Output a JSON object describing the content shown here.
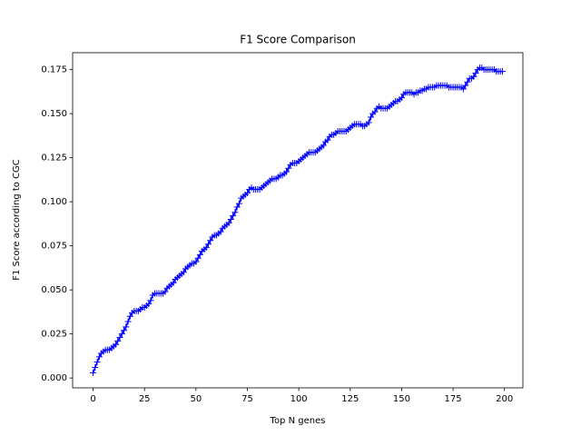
{
  "chart_data": {
    "type": "line",
    "title": "F1 Score Comparison",
    "xlabel": "Top N genes",
    "ylabel": "F1 Score according to CGC",
    "x": [
      0,
      1,
      2,
      3,
      4,
      5,
      6,
      7,
      8,
      9,
      10,
      11,
      12,
      13,
      14,
      15,
      16,
      17,
      18,
      19,
      20,
      21,
      22,
      23,
      24,
      25,
      26,
      27,
      28,
      29,
      30,
      31,
      32,
      33,
      34,
      35,
      36,
      37,
      38,
      39,
      40,
      41,
      42,
      43,
      44,
      45,
      46,
      47,
      48,
      49,
      50,
      51,
      52,
      53,
      54,
      55,
      56,
      57,
      58,
      59,
      60,
      61,
      62,
      63,
      64,
      65,
      66,
      67,
      68,
      69,
      70,
      71,
      72,
      73,
      74,
      75,
      76,
      77,
      78,
      79,
      80,
      81,
      82,
      83,
      84,
      85,
      86,
      87,
      88,
      89,
      90,
      91,
      92,
      93,
      94,
      95,
      96,
      97,
      98,
      99,
      100,
      101,
      102,
      103,
      104,
      105,
      106,
      107,
      108,
      109,
      110,
      111,
      112,
      113,
      114,
      115,
      116,
      117,
      118,
      119,
      120,
      121,
      122,
      123,
      124,
      125,
      126,
      127,
      128,
      129,
      130,
      131,
      132,
      133,
      134,
      135,
      136,
      137,
      138,
      139,
      140,
      141,
      142,
      143,
      144,
      145,
      146,
      147,
      148,
      149,
      150,
      151,
      152,
      153,
      154,
      155,
      156,
      157,
      158,
      159,
      160,
      161,
      162,
      163,
      164,
      165,
      166,
      167,
      168,
      169,
      170,
      171,
      172,
      173,
      174,
      175,
      176,
      177,
      178,
      179,
      180,
      181,
      182,
      183,
      184,
      185,
      186,
      187,
      188,
      189,
      190,
      191,
      192,
      193,
      194,
      195,
      196,
      197,
      198,
      199
    ],
    "series": [
      {
        "color": "#0000ff",
        "marker": "+",
        "values": [
          0.003,
          0.006,
          0.009,
          0.012,
          0.014,
          0.015,
          0.016,
          0.016,
          0.016,
          0.017,
          0.018,
          0.019,
          0.021,
          0.023,
          0.025,
          0.027,
          0.029,
          0.032,
          0.035,
          0.037,
          0.038,
          0.038,
          0.038,
          0.039,
          0.04,
          0.04,
          0.041,
          0.042,
          0.044,
          0.047,
          0.048,
          0.048,
          0.048,
          0.048,
          0.048,
          0.049,
          0.051,
          0.052,
          0.053,
          0.054,
          0.056,
          0.057,
          0.058,
          0.059,
          0.06,
          0.062,
          0.063,
          0.064,
          0.065,
          0.065,
          0.066,
          0.068,
          0.07,
          0.072,
          0.073,
          0.074,
          0.076,
          0.078,
          0.08,
          0.081,
          0.081,
          0.082,
          0.083,
          0.085,
          0.086,
          0.087,
          0.088,
          0.09,
          0.092,
          0.094,
          0.097,
          0.099,
          0.102,
          0.103,
          0.104,
          0.105,
          0.107,
          0.108,
          0.107,
          0.107,
          0.107,
          0.107,
          0.108,
          0.109,
          0.11,
          0.111,
          0.112,
          0.113,
          0.113,
          0.113,
          0.114,
          0.115,
          0.115,
          0.116,
          0.117,
          0.119,
          0.121,
          0.122,
          0.122,
          0.122,
          0.123,
          0.124,
          0.125,
          0.126,
          0.127,
          0.128,
          0.128,
          0.128,
          0.128,
          0.129,
          0.13,
          0.131,
          0.132,
          0.134,
          0.135,
          0.137,
          0.138,
          0.138,
          0.139,
          0.14,
          0.14,
          0.14,
          0.14,
          0.14,
          0.141,
          0.142,
          0.143,
          0.144,
          0.144,
          0.144,
          0.144,
          0.143,
          0.143,
          0.144,
          0.145,
          0.148,
          0.15,
          0.151,
          0.153,
          0.154,
          0.153,
          0.153,
          0.153,
          0.153,
          0.154,
          0.155,
          0.156,
          0.157,
          0.157,
          0.158,
          0.159,
          0.161,
          0.162,
          0.162,
          0.162,
          0.162,
          0.161,
          0.162,
          0.162,
          0.163,
          0.163,
          0.164,
          0.164,
          0.165,
          0.165,
          0.165,
          0.165,
          0.166,
          0.166,
          0.166,
          0.166,
          0.166,
          0.166,
          0.165,
          0.165,
          0.165,
          0.165,
          0.165,
          0.165,
          0.165,
          0.164,
          0.166,
          0.168,
          0.17,
          0.17,
          0.171,
          0.173,
          0.175,
          0.176,
          0.176,
          0.175,
          0.175,
          0.175,
          0.175,
          0.175,
          0.175,
          0.174,
          0.174,
          0.174,
          0.174
        ]
      }
    ],
    "xlim": [
      -9.95,
      208.95
    ],
    "xticks": [
      0,
      25,
      50,
      75,
      100,
      125,
      150,
      175,
      200
    ],
    "ylim": [
      -0.0056,
      0.1846
    ],
    "yticks": [
      {
        "value": 0,
        "label": "0.000"
      },
      0.025,
      {
        "value": 0.05,
        "label": "0.050"
      },
      0.075,
      {
        "value": 0.1,
        "label": "0.100"
      },
      0.125,
      {
        "value": 0.15,
        "label": "0.150"
      },
      0.175
    ],
    "grid": false
  }
}
